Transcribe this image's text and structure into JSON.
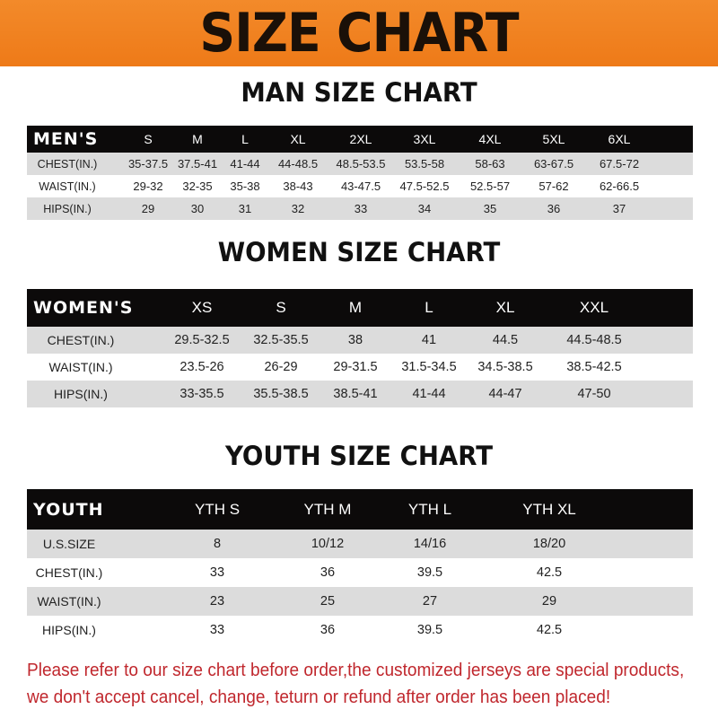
{
  "title": "SIZE CHART",
  "colors": {
    "banner": "#f07f1e",
    "header_row": "#0c0a0a",
    "stripe": "#dcdcdc",
    "note": "#c0272d"
  },
  "men": {
    "title": "MAN SIZE CHART",
    "header_label": "MEN'S",
    "sizes": [
      "S",
      "M",
      "L",
      "XL",
      "2XL",
      "3XL",
      "4XL",
      "5XL",
      "6XL"
    ],
    "rows": [
      {
        "label": "CHEST(IN.)",
        "values": [
          "35-37.5",
          "37.5-41",
          "41-44",
          "44-48.5",
          "48.5-53.5",
          "53.5-58",
          "58-63",
          "63-67.5",
          "67.5-72"
        ]
      },
      {
        "label": "WAIST(IN.)",
        "values": [
          "29-32",
          "32-35",
          "35-38",
          "38-43",
          "43-47.5",
          "47.5-52.5",
          "52.5-57",
          "57-62",
          "62-66.5"
        ]
      },
      {
        "label": "HIPS(IN.)",
        "values": [
          "29",
          "30",
          "31",
          "32",
          "33",
          "34",
          "35",
          "36",
          "37"
        ]
      }
    ]
  },
  "women": {
    "title": "WOMEN SIZE CHART",
    "header_label": "WOMEN'S",
    "sizes": [
      "XS",
      "S",
      "M",
      "L",
      "XL",
      "XXL"
    ],
    "rows": [
      {
        "label": "CHEST(IN.)",
        "values": [
          "29.5-32.5",
          "32.5-35.5",
          "38",
          "41",
          "44.5",
          "44.5-48.5"
        ]
      },
      {
        "label": "WAIST(IN.)",
        "values": [
          "23.5-26",
          "26-29",
          "29-31.5",
          "31.5-34.5",
          "34.5-38.5",
          "38.5-42.5"
        ]
      },
      {
        "label": "HIPS(IN.)",
        "values": [
          "33-35.5",
          "35.5-38.5",
          "38.5-41",
          "41-44",
          "44-47",
          "47-50"
        ]
      }
    ]
  },
  "youth": {
    "title": "YOUTH SIZE CHART",
    "header_label": "YOUTH",
    "sizes": [
      "YTH S",
      "YTH M",
      "YTH L",
      "YTH XL"
    ],
    "rows": [
      {
        "label": "U.S.SIZE",
        "values": [
          "8",
          "10/12",
          "14/16",
          "18/20"
        ]
      },
      {
        "label": "CHEST(IN.)",
        "values": [
          "33",
          "36",
          "39.5",
          "42.5"
        ]
      },
      {
        "label": "WAIST(IN.)",
        "values": [
          "23",
          "25",
          "27",
          "29"
        ]
      },
      {
        "label": "HIPS(IN.)",
        "values": [
          "33",
          "36",
          "39.5",
          "42.5"
        ]
      }
    ]
  },
  "notice": [
    "Please refer to our size chart before order,the customized jerseys are special products,",
    "we don't accept cancel, change, teturn or refund after order has been placed!"
  ]
}
